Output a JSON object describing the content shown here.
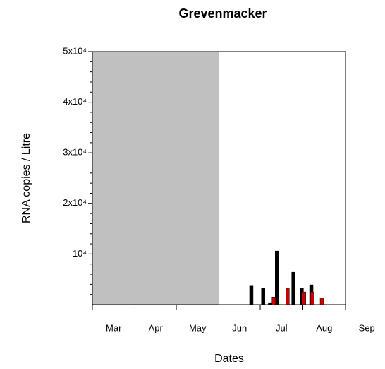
{
  "chart_data": {
    "type": "bar",
    "title": "Grevenmacker",
    "y_label": "RNA copies / Litre",
    "x_label": "Dates",
    "x": [
      119.4,
      128,
      133,
      138,
      150,
      156,
      163
    ],
    "series": [
      {
        "color": "#000000",
        "values": [
          3800,
          3300,
          400,
          10600,
          6400,
          3200,
          3900
        ]
      },
      {
        "color": "#cc0000",
        "values": [
          null,
          1500,
          null,
          3200,
          2500,
          2500,
          1300
        ]
      }
    ],
    "shaded": [
      0,
      92
    ],
    "shade_color": "#c0c0c0",
    "xlim": [
      0,
      184
    ],
    "xticks": [
      {
        "value": 0,
        "label": "Mar"
      },
      {
        "value": 31,
        "label": "Apr"
      },
      {
        "value": 61,
        "label": "May"
      },
      {
        "value": 92,
        "label": "Jun"
      },
      {
        "value": 122,
        "label": "Jul"
      },
      {
        "value": 153,
        "label": "Aug"
      },
      {
        "value": 184,
        "label": "Sep"
      }
    ],
    "ylim": [
      0,
      50000
    ],
    "yticks": [
      {
        "value": 10000,
        "label": "10⁴"
      },
      {
        "value": 20000,
        "label": "2x10⁴"
      },
      {
        "value": 30000,
        "label": "3x10⁴"
      },
      {
        "value": 40000,
        "label": "4x10⁴"
      },
      {
        "value": 50000,
        "label": "5x10⁴"
      }
    ]
  }
}
